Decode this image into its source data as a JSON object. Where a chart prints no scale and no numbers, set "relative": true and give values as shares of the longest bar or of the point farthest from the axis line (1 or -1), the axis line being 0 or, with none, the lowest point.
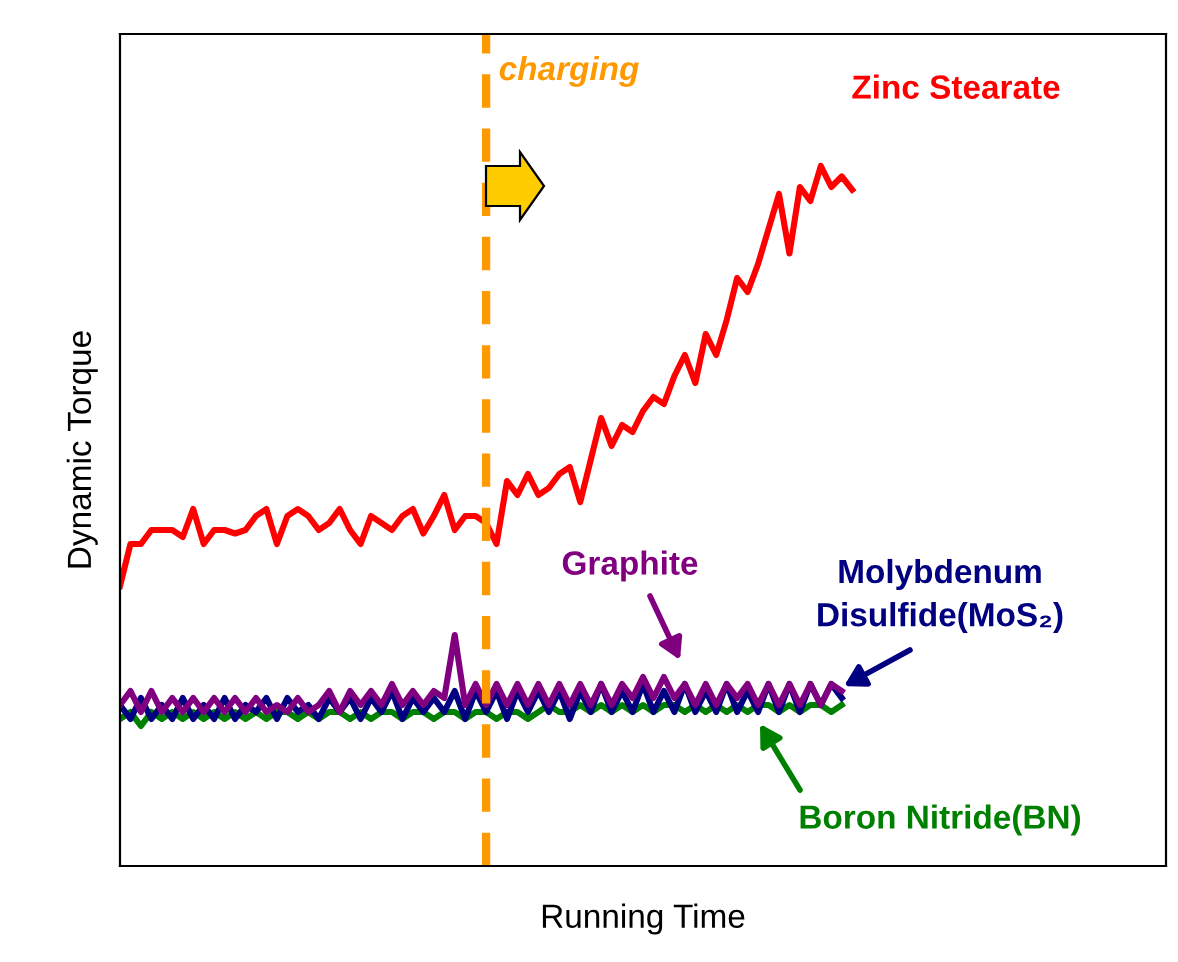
{
  "chart_data": {
    "type": "line",
    "relative": true,
    "xlabel": "Running Time",
    "ylabel": "Dynamic Torque",
    "marker": "none",
    "line_style": "solid",
    "categories": [
      null,
      null,
      null,
      null,
      null,
      null,
      null,
      null,
      null,
      null,
      null,
      null,
      null,
      null,
      null,
      null,
      null,
      null,
      null,
      null,
      null,
      null,
      null,
      null,
      null,
      null,
      null,
      null,
      null,
      null,
      null,
      null,
      null,
      null,
      null,
      null,
      null,
      null,
      null,
      null,
      null,
      null,
      null,
      null,
      null,
      null,
      null,
      null,
      null,
      null,
      null,
      null,
      null,
      null,
      null,
      null,
      null,
      null,
      null,
      null,
      null,
      null,
      null,
      null,
      null,
      null,
      null,
      null,
      null,
      null,
      null
    ],
    "annotations": [
      "charging"
    ],
    "series": [
      {
        "name": "Zinc Stearate",
        "color": "#ff0000",
        "values": [
          0.4,
          0.46,
          0.46,
          0.48,
          0.48,
          0.48,
          0.47,
          0.51,
          0.46,
          0.48,
          0.48,
          0.475,
          0.48,
          0.5,
          0.51,
          0.46,
          0.5,
          0.51,
          0.5,
          0.48,
          0.49,
          0.51,
          0.48,
          0.46,
          0.5,
          0.49,
          0.48,
          0.5,
          0.51,
          0.475,
          0.5,
          0.53,
          0.48,
          0.5,
          0.5,
          0.49,
          0.46,
          0.55,
          0.53,
          0.56,
          0.53,
          0.54,
          0.56,
          0.57,
          0.52,
          0.58,
          0.64,
          0.6,
          0.63,
          0.62,
          0.65,
          0.67,
          0.66,
          0.7,
          0.73,
          0.69,
          0.76,
          0.73,
          0.78,
          0.84,
          0.82,
          0.86,
          0.91,
          0.96,
          0.875,
          0.97,
          0.95,
          1.0,
          0.97,
          0.985,
          0.966
        ]
      },
      {
        "name": "Graphite",
        "color": "#800080",
        "values": [
          0.23,
          0.25,
          0.22,
          0.25,
          0.22,
          0.24,
          0.22,
          0.24,
          0.22,
          0.24,
          0.22,
          0.24,
          0.22,
          0.24,
          0.22,
          0.23,
          0.22,
          0.24,
          0.22,
          0.23,
          0.25,
          0.22,
          0.25,
          0.23,
          0.25,
          0.23,
          0.26,
          0.23,
          0.25,
          0.23,
          0.25,
          0.24,
          0.33,
          0.23,
          0.26,
          0.23,
          0.26,
          0.23,
          0.26,
          0.23,
          0.26,
          0.23,
          0.26,
          0.23,
          0.26,
          0.23,
          0.26,
          0.23,
          0.26,
          0.24,
          0.27,
          0.24,
          0.27,
          0.24,
          0.26,
          0.23,
          0.26,
          0.23,
          0.26,
          0.24,
          0.26,
          0.23,
          0.26,
          0.23,
          0.26,
          0.23,
          0.26,
          0.23,
          0.26,
          0.25,
          null
        ]
      },
      {
        "name": "Molybdenum Disulfide(MoS₂)",
        "color": "#000080",
        "values": [
          0.23,
          0.21,
          0.24,
          0.21,
          0.23,
          0.21,
          0.24,
          0.21,
          0.23,
          0.21,
          0.24,
          0.21,
          0.23,
          0.22,
          0.24,
          0.21,
          0.24,
          0.22,
          0.23,
          0.21,
          0.24,
          0.22,
          0.24,
          0.21,
          0.24,
          0.22,
          0.25,
          0.21,
          0.24,
          0.22,
          0.24,
          0.22,
          0.25,
          0.21,
          0.25,
          0.22,
          0.25,
          0.21,
          0.25,
          0.22,
          0.25,
          0.22,
          0.25,
          0.21,
          0.25,
          0.22,
          0.26,
          0.22,
          0.25,
          0.22,
          0.26,
          0.22,
          0.25,
          0.22,
          0.26,
          0.22,
          0.25,
          0.22,
          0.26,
          0.22,
          0.25,
          0.22,
          0.26,
          0.22,
          0.26,
          0.22,
          0.26,
          0.23,
          0.26,
          0.24,
          null
        ]
      },
      {
        "name": "Boron Nitride(BN)",
        "color": "#008000",
        "values": [
          0.21,
          0.22,
          0.2,
          0.22,
          0.21,
          0.22,
          0.21,
          0.22,
          0.21,
          0.22,
          0.21,
          0.22,
          0.21,
          0.22,
          0.21,
          0.22,
          0.22,
          0.21,
          0.22,
          0.21,
          0.22,
          0.22,
          0.21,
          0.22,
          0.21,
          0.22,
          0.22,
          0.21,
          0.22,
          0.22,
          0.21,
          0.22,
          0.22,
          0.21,
          0.22,
          0.22,
          0.21,
          0.22,
          0.22,
          0.21,
          0.22,
          0.23,
          0.22,
          0.22,
          0.23,
          0.22,
          0.23,
          0.22,
          0.23,
          0.22,
          0.23,
          0.22,
          0.23,
          0.23,
          0.22,
          0.23,
          0.22,
          0.23,
          0.22,
          0.23,
          0.22,
          0.23,
          0.23,
          0.22,
          0.23,
          0.22,
          0.23,
          0.23,
          0.22,
          0.23,
          null
        ]
      }
    ]
  }
}
